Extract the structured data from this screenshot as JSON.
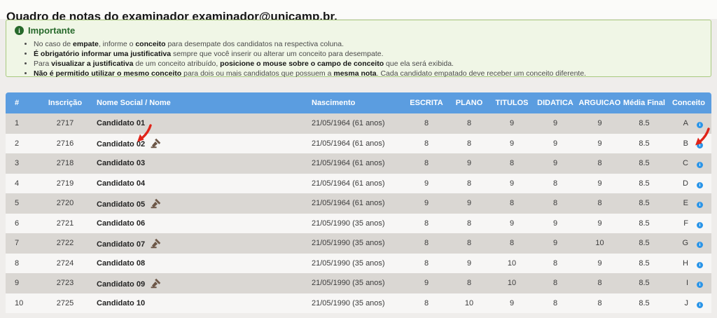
{
  "page": {
    "title": "Quadro de notas do examinador examinador@unicamp.br."
  },
  "colors": {
    "header_bg": "#5b9de0",
    "accent_green": "#27692b",
    "info_dot": "#2b95e8",
    "arrow_red": "#e02419",
    "gavel_brown": "#6d5747"
  },
  "icons": {
    "importante_icon_glyph": "i",
    "info_dot_glyph": "i"
  },
  "info_box": {
    "title": "Importante",
    "bullets": [
      [
        {
          "t": "No caso de "
        },
        {
          "t": "empate",
          "b": true
        },
        {
          "t": ", informe o "
        },
        {
          "t": "conceito",
          "b": true
        },
        {
          "t": " para desempate dos candidatos na respectiva coluna."
        }
      ],
      [
        {
          "t": "É obrigatório informar uma justificativa",
          "b": true
        },
        {
          "t": " sempre que você inserir ou alterar um conceito para desempate."
        }
      ],
      [
        {
          "t": "Para "
        },
        {
          "t": "visualizar a justificativa",
          "b": true
        },
        {
          "t": " de um conceito atribuído, "
        },
        {
          "t": "posicione o mouse sobre o campo de conceito",
          "b": true
        },
        {
          "t": " que ela será exibida."
        }
      ],
      [
        {
          "t": "Não é permitido utilizar o mesmo conceito",
          "b": true
        },
        {
          "t": " para dois ou mais candidatos que possuem a "
        },
        {
          "t": "mesma nota",
          "b": true
        },
        {
          "t": ". Cada candidato empatado deve receber um conceito diferente."
        }
      ]
    ]
  },
  "table": {
    "headers": [
      "#",
      "Inscrição",
      "Nome Social / Nome",
      "Nascimento",
      "ESCRITA",
      "PLANO",
      "TITULOS",
      "DIDATICA",
      "ARGUICAO",
      "Média Final",
      "Conceito"
    ],
    "rows": [
      {
        "num": "1",
        "inscricao": "2717",
        "nome": "Candidato 01",
        "gavel": false,
        "nascimento": "21/05/1964 (61 anos)",
        "escrita": 8,
        "plano": 8,
        "titulos": 9,
        "didatica": 9,
        "arguicao": 9,
        "media": "8.5",
        "conceito": "A"
      },
      {
        "num": "2",
        "inscricao": "2716",
        "nome": "Candidato 02",
        "gavel": true,
        "nascimento": "21/05/1964 (61 anos)",
        "escrita": 8,
        "plano": 8,
        "titulos": 9,
        "didatica": 9,
        "arguicao": 9,
        "media": "8.5",
        "conceito": "B"
      },
      {
        "num": "3",
        "inscricao": "2718",
        "nome": "Candidato 03",
        "gavel": false,
        "nascimento": "21/05/1964 (61 anos)",
        "escrita": 8,
        "plano": 9,
        "titulos": 8,
        "didatica": 9,
        "arguicao": 8,
        "media": "8.5",
        "conceito": "C"
      },
      {
        "num": "4",
        "inscricao": "2719",
        "nome": "Candidato 04",
        "gavel": false,
        "nascimento": "21/05/1964 (61 anos)",
        "escrita": 9,
        "plano": 8,
        "titulos": 9,
        "didatica": 8,
        "arguicao": 9,
        "media": "8.5",
        "conceito": "D"
      },
      {
        "num": "5",
        "inscricao": "2720",
        "nome": "Candidato 05",
        "gavel": true,
        "nascimento": "21/05/1964 (61 anos)",
        "escrita": 9,
        "plano": 9,
        "titulos": 8,
        "didatica": 8,
        "arguicao": 8,
        "media": "8.5",
        "conceito": "E"
      },
      {
        "num": "6",
        "inscricao": "2721",
        "nome": "Candidato 06",
        "gavel": false,
        "nascimento": "21/05/1990 (35 anos)",
        "escrita": 8,
        "plano": 8,
        "titulos": 9,
        "didatica": 9,
        "arguicao": 9,
        "media": "8.5",
        "conceito": "F"
      },
      {
        "num": "7",
        "inscricao": "2722",
        "nome": "Candidato 07",
        "gavel": true,
        "nascimento": "21/05/1990 (35 anos)",
        "escrita": 8,
        "plano": 8,
        "titulos": 8,
        "didatica": 9,
        "arguicao": 10,
        "media": "8.5",
        "conceito": "G"
      },
      {
        "num": "8",
        "inscricao": "2724",
        "nome": "Candidato 08",
        "gavel": false,
        "nascimento": "21/05/1990 (35 anos)",
        "escrita": 8,
        "plano": 9,
        "titulos": 10,
        "didatica": 8,
        "arguicao": 9,
        "media": "8.5",
        "conceito": "H"
      },
      {
        "num": "9",
        "inscricao": "2723",
        "nome": "Candidato 09",
        "gavel": true,
        "nascimento": "21/05/1990 (35 anos)",
        "escrita": 9,
        "plano": 8,
        "titulos": 10,
        "didatica": 8,
        "arguicao": 8,
        "media": "8.5",
        "conceito": "I"
      },
      {
        "num": "10",
        "inscricao": "2725",
        "nome": "Candidato 10",
        "gavel": false,
        "nascimento": "21/05/1990 (35 anos)",
        "escrita": 8,
        "plano": 10,
        "titulos": 9,
        "didatica": 8,
        "arguicao": 8,
        "media": "8.5",
        "conceito": "J"
      }
    ]
  },
  "annotations": {
    "gavel_arrow_row": 2,
    "conceito_arrow_row": 2
  }
}
